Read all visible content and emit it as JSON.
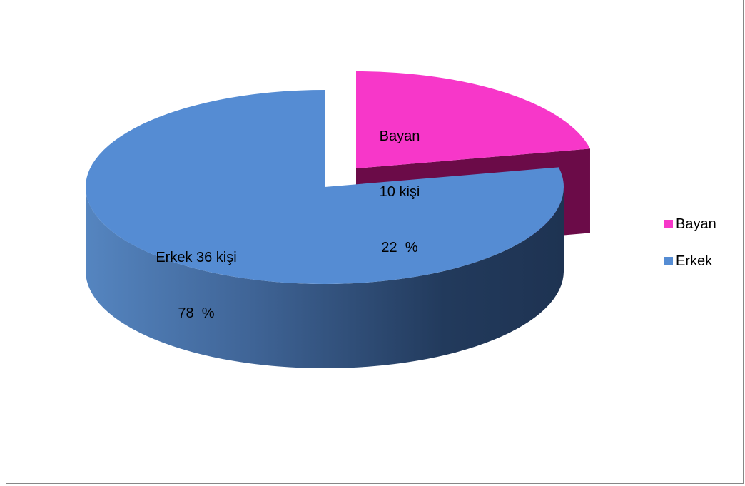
{
  "chart_data": {
    "type": "pie",
    "style": "3d-exploded",
    "slices": [
      {
        "name": "Bayan",
        "count": 10,
        "percent": 22,
        "color": "#F737C9",
        "side_color": "#6B0B48",
        "label_lines": [
          "Bayan",
          "10 kişi",
          "22  %"
        ]
      },
      {
        "name": "Erkek",
        "count": 36,
        "percent": 78,
        "color": "#558CD3",
        "side_color": "#2B4A74",
        "label_lines": [
          "Erkek 36 kişi",
          "78  %"
        ]
      }
    ],
    "legend": {
      "position": "right",
      "entries": [
        {
          "label": "Bayan",
          "color": "#F737C9"
        },
        {
          "label": "Erkek",
          "color": "#558CD3"
        }
      ]
    }
  }
}
